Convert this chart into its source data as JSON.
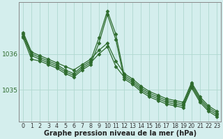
{
  "xlabel": "Graphe pression niveau de la mer (hPa)",
  "bg_color": "#d4eeed",
  "grid_color": "#b0d8d0",
  "line_color": "#2d6b2d",
  "marker": "D",
  "markersize": 2.5,
  "linewidth": 0.9,
  "series": [
    [
      1036.6,
      1036.05,
      1035.95,
      1035.85,
      1035.75,
      1035.65,
      1035.55,
      1035.7,
      1035.85,
      1036.1,
      1036.3,
      1035.8,
      1035.45,
      1035.3,
      1035.1,
      1034.95,
      1034.85,
      1034.75,
      1034.7,
      1034.65,
      1035.2,
      1034.8,
      1034.55,
      1034.4
    ],
    [
      1036.5,
      1035.95,
      1035.85,
      1035.75,
      1035.65,
      1035.5,
      1035.4,
      1035.6,
      1035.75,
      1036.0,
      1036.2,
      1035.65,
      1035.35,
      1035.2,
      1035.0,
      1034.85,
      1034.75,
      1034.65,
      1034.6,
      1034.55,
      1035.1,
      1034.7,
      1034.45,
      1034.3
    ],
    [
      1036.55,
      1036.0,
      1035.9,
      1035.8,
      1035.7,
      1035.55,
      1035.45,
      1035.65,
      1035.8,
      1036.45,
      1037.2,
      1036.55,
      1035.4,
      1035.25,
      1035.05,
      1034.9,
      1034.8,
      1034.7,
      1034.65,
      1034.6,
      1035.15,
      1034.75,
      1034.5,
      1034.35
    ],
    [
      1036.45,
      1035.85,
      1035.8,
      1035.7,
      1035.6,
      1035.45,
      1035.35,
      1035.55,
      1035.7,
      1036.3,
      1037.1,
      1036.4,
      1035.3,
      1035.15,
      1034.95,
      1034.8,
      1034.7,
      1034.6,
      1034.55,
      1034.5,
      1035.05,
      1034.65,
      1034.4,
      1034.25
    ]
  ],
  "ylim": [
    1034.1,
    1037.45
  ],
  "yticks": [
    1035.0,
    1036.0
  ],
  "ytick_labels": [
    "1035",
    "1036"
  ],
  "xticks": [
    0,
    1,
    2,
    3,
    4,
    5,
    6,
    7,
    8,
    9,
    10,
    11,
    12,
    13,
    14,
    15,
    16,
    17,
    18,
    19,
    20,
    21,
    22,
    23
  ],
  "xtick_labels": [
    "0",
    "1",
    "2",
    "3",
    "4",
    "5",
    "6",
    "7",
    "8",
    "9",
    "10",
    "11",
    "12",
    "13",
    "14",
    "15",
    "16",
    "17",
    "18",
    "19",
    "20",
    "21",
    "22",
    "23"
  ],
  "xlabel_fontsize": 7.0,
  "xlabel_fontweight": "bold",
  "tick_fontsize": 5.8,
  "ytick_fontsize": 6.5,
  "border_color": "#888888"
}
